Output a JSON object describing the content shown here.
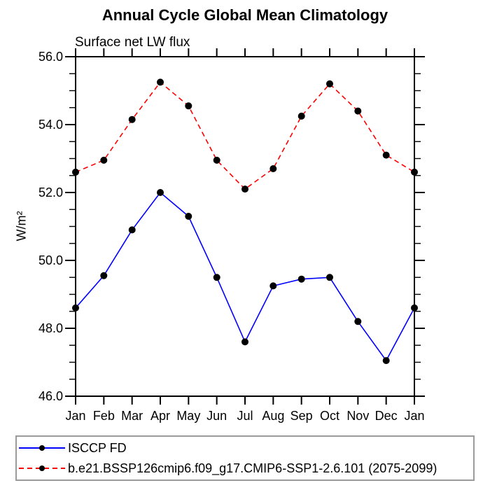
{
  "figure": {
    "background_color": "#ffffff",
    "axis_color": "#000000",
    "legend_border_color": "#9b9b9b"
  },
  "chart_data": {
    "type": "line",
    "title": "Annual Cycle Global Mean Climatology",
    "subtitle": "Surface net LW flux",
    "ylabel": "W/m²",
    "xlabel": "",
    "categories": [
      "Jan",
      "Feb",
      "Mar",
      "Apr",
      "May",
      "Jun",
      "Jul",
      "Aug",
      "Sep",
      "Oct",
      "Nov",
      "Dec",
      "Jan"
    ],
    "ylim": [
      46.0,
      56.0
    ],
    "ytick_major_step": 2.0,
    "ytick_minor_step": 0.5,
    "ytick_labels": [
      "46.0",
      "48.0",
      "50.0",
      "52.0",
      "54.0",
      "56.0"
    ],
    "grid": false,
    "legend_position": "bottom-left",
    "series": [
      {
        "name": "ISCCP FD",
        "color": "#0000ff",
        "line_style": "solid",
        "marker": "filled-circle",
        "marker_color": "#000000",
        "values": [
          48.6,
          49.55,
          50.9,
          52.0,
          51.3,
          49.5,
          47.6,
          49.25,
          49.45,
          49.5,
          48.2,
          47.05,
          48.6
        ]
      },
      {
        "name": "b.e21.BSSP126cmip6.f09_g17.CMIP6-SSP1-2.6.101 (2075-2099)",
        "color": "#ff0000",
        "line_style": "dashed",
        "marker": "filled-circle",
        "marker_color": "#000000",
        "values": [
          52.6,
          52.95,
          54.15,
          55.25,
          54.55,
          52.95,
          52.1,
          52.7,
          54.25,
          55.2,
          54.4,
          53.1,
          52.6
        ]
      }
    ]
  }
}
